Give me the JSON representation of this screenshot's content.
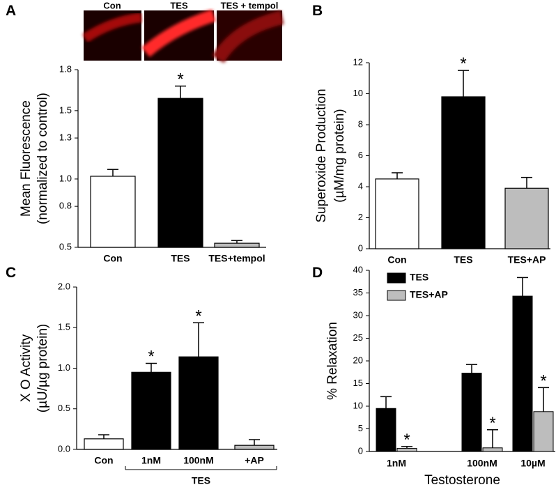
{
  "chart_data": [
    {
      "type": "bar",
      "panel": "A",
      "images": [
        "Con",
        "TES",
        "TES + tempol"
      ],
      "y_label": [
        "Mean Fluorescence",
        "(normalized to control)"
      ],
      "categories": [
        "Con",
        "TES",
        "TES+tempol"
      ],
      "values": [
        1.02,
        1.59,
        0.53
      ],
      "errors": [
        0.05,
        0.09,
        0.02
      ],
      "colors": [
        "#ffffff",
        "#000000",
        "#bdbdbd"
      ],
      "significance": [
        null,
        "*",
        null
      ],
      "ylim": [
        0.5,
        1.8
      ],
      "yticks": [
        0.5,
        0.8,
        {
          "value": 1,
          "label": "1.0"
        },
        1.3,
        1.5,
        1.8
      ]
    },
    {
      "type": "bar",
      "panel": "B",
      "y_label": [
        "Superoxide Production",
        "(µM/mg protein)"
      ],
      "categories": [
        "Con",
        "TES",
        "TES+AP"
      ],
      "values": [
        4.5,
        9.8,
        3.9
      ],
      "errors": [
        0.4,
        1.7,
        0.7
      ],
      "colors": [
        "#ffffff",
        "#000000",
        "#bdbdbd"
      ],
      "significance": [
        null,
        "*",
        null
      ],
      "ylim": [
        0,
        12
      ],
      "yticks": [
        0,
        2,
        4,
        6,
        8,
        10,
        12
      ]
    },
    {
      "type": "bar",
      "panel": "C",
      "y_label": [
        "X O  Activity",
        "(µU/µg protein)"
      ],
      "categories": [
        "Con",
        "1nM",
        "100nM",
        "+AP"
      ],
      "group_label": "TES",
      "values": [
        0.13,
        0.95,
        1.14,
        0.05
      ],
      "errors": [
        0.05,
        0.11,
        0.42,
        0.07
      ],
      "colors": [
        "#ffffff",
        "#000000",
        "#000000",
        "#bdbdbd"
      ],
      "significance": [
        null,
        "*",
        "*",
        null
      ],
      "ylim": [
        0,
        2
      ],
      "yticks": [
        {
          "value": 0,
          "label": "0.0"
        },
        0.5,
        {
          "value": 1,
          "label": "1.0"
        },
        1.5,
        {
          "value": 2,
          "label": "2.0"
        }
      ]
    },
    {
      "type": "grouped_bar",
      "panel": "D",
      "y_label": [
        "% Relaxation"
      ],
      "x_label": "Testosterone",
      "categories": [
        "1nM",
        "100nM",
        "10µM"
      ],
      "series": [
        {
          "name": "TES",
          "color": "#000000",
          "values": [
            9.5,
            17.3,
            34.3
          ],
          "errors": [
            2.6,
            1.9,
            4.1
          ],
          "significance": [
            null,
            null,
            null
          ]
        },
        {
          "name": "TES+AP",
          "color": "#bdbdbd",
          "values": [
            0.7,
            0.8,
            8.8
          ],
          "errors": [
            0.4,
            4.0,
            5.3
          ],
          "significance": [
            "*",
            "*",
            "*"
          ]
        }
      ],
      "ylim": [
        0,
        40
      ],
      "yticks": [
        0,
        5,
        10,
        15,
        20,
        25,
        30,
        35,
        40
      ],
      "legend": "upper-left"
    }
  ]
}
